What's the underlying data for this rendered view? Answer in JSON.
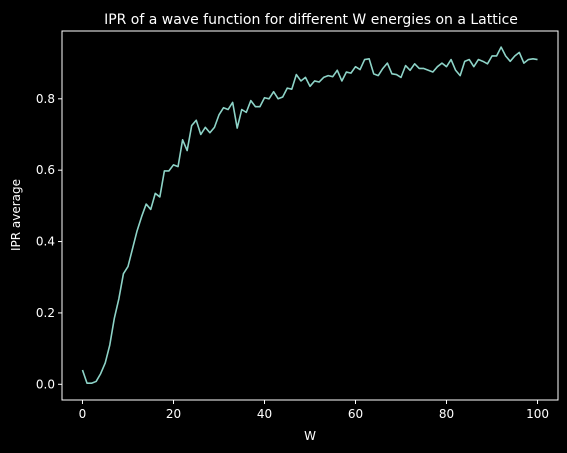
{
  "chart_data": {
    "type": "line",
    "title": "IPR of a wave function for different W energies on a Lattice",
    "xlabel": "W",
    "ylabel": "IPR average",
    "xlim": [
      -4.5,
      104.5
    ],
    "ylim": [
      -0.044,
      0.99
    ],
    "xticks": [
      0,
      20,
      40,
      60,
      80,
      100
    ],
    "yticks": [
      0.0,
      0.2,
      0.4,
      0.6,
      0.8
    ],
    "xtick_labels": [
      "0",
      "20",
      "40",
      "60",
      "80",
      "100"
    ],
    "ytick_labels": [
      "0.0",
      "0.2",
      "0.4",
      "0.6",
      "0.8"
    ],
    "grid": false,
    "background": "#000000",
    "axis_color": "#ffffff",
    "series": [
      {
        "color": "#8dd3c7",
        "x": [
          0,
          1,
          2,
          3,
          4,
          5,
          6,
          7,
          8,
          9,
          10,
          11,
          12,
          13,
          14,
          15,
          16,
          17,
          18,
          19,
          20,
          21,
          22,
          23,
          24,
          25,
          26,
          27,
          28,
          29,
          30,
          31,
          32,
          33,
          34,
          35,
          36,
          37,
          38,
          39,
          40,
          41,
          42,
          43,
          44,
          45,
          46,
          47,
          48,
          49,
          50,
          51,
          52,
          53,
          54,
          55,
          56,
          57,
          58,
          59,
          60,
          61,
          62,
          63,
          64,
          65,
          66,
          67,
          68,
          69,
          70,
          71,
          72,
          73,
          74,
          75,
          76,
          77,
          78,
          79,
          80,
          81,
          82,
          83,
          84,
          85,
          86,
          87,
          88,
          89,
          90,
          91,
          92,
          93,
          94,
          95,
          96,
          97,
          98,
          99,
          100
        ],
        "y": [
          0.04,
          0.003,
          0.003,
          0.008,
          0.03,
          0.06,
          0.11,
          0.185,
          0.24,
          0.31,
          0.33,
          0.38,
          0.43,
          0.47,
          0.505,
          0.49,
          0.535,
          0.525,
          0.598,
          0.598,
          0.615,
          0.61,
          0.685,
          0.655,
          0.725,
          0.74,
          0.7,
          0.72,
          0.705,
          0.72,
          0.755,
          0.775,
          0.77,
          0.79,
          0.718,
          0.77,
          0.762,
          0.795,
          0.778,
          0.778,
          0.803,
          0.8,
          0.82,
          0.8,
          0.805,
          0.83,
          0.827,
          0.868,
          0.85,
          0.86,
          0.835,
          0.85,
          0.847,
          0.86,
          0.865,
          0.862,
          0.88,
          0.85,
          0.875,
          0.872,
          0.89,
          0.882,
          0.91,
          0.912,
          0.87,
          0.865,
          0.885,
          0.9,
          0.87,
          0.868,
          0.86,
          0.893,
          0.88,
          0.898,
          0.885,
          0.885,
          0.88,
          0.875,
          0.89,
          0.9,
          0.89,
          0.91,
          0.88,
          0.865,
          0.905,
          0.91,
          0.89,
          0.91,
          0.905,
          0.898,
          0.92,
          0.92,
          0.945,
          0.92,
          0.905,
          0.92,
          0.93,
          0.9,
          0.91,
          0.912,
          0.91
        ]
      }
    ]
  }
}
